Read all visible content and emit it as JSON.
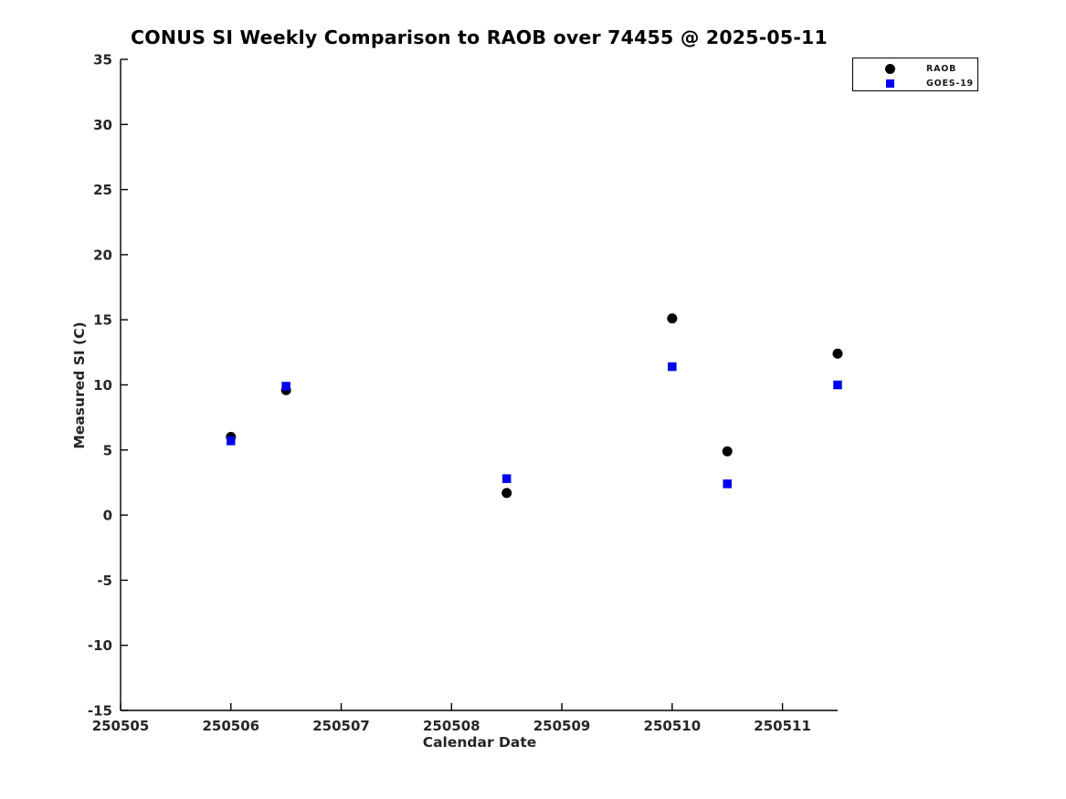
{
  "title": "CONUS SI Weekly Comparison to RAOB over 74455 @ 2025-05-11",
  "colors": {
    "raob": "#000000",
    "goes19": "#0000ee",
    "axis": "#000000",
    "text": "#262626",
    "background": "#ffffff"
  },
  "chart_data": {
    "type": "scatter",
    "title": "CONUS SI Weekly Comparison to RAOB over 74455 @ 2025-05-11",
    "xlabel": "Calendar Date",
    "ylabel": "Measured SI (C)",
    "xlim": [
      250505,
      250511.5
    ],
    "ylim": [
      -15,
      35
    ],
    "x_ticks": [
      250505,
      250506,
      250507,
      250508,
      250509,
      250510,
      250511
    ],
    "y_ticks": [
      -15,
      -10,
      -5,
      0,
      5,
      10,
      15,
      20,
      25,
      30,
      35
    ],
    "grid": false,
    "legend_position": "top-right-outside",
    "series": [
      {
        "name": "RAOB",
        "marker": "circle",
        "color": "#000000",
        "x": [
          250506.0,
          250506.5,
          250508.5,
          250510.0,
          250510.5,
          250511.5
        ],
        "y": [
          6.0,
          9.6,
          1.7,
          15.1,
          4.9,
          12.4
        ]
      },
      {
        "name": "GOES-19",
        "marker": "square",
        "color": "#0000ee",
        "x": [
          250506.0,
          250506.5,
          250508.5,
          250510.0,
          250510.5,
          250511.5
        ],
        "y": [
          5.7,
          9.9,
          2.8,
          11.4,
          2.4,
          10.0
        ]
      }
    ]
  }
}
